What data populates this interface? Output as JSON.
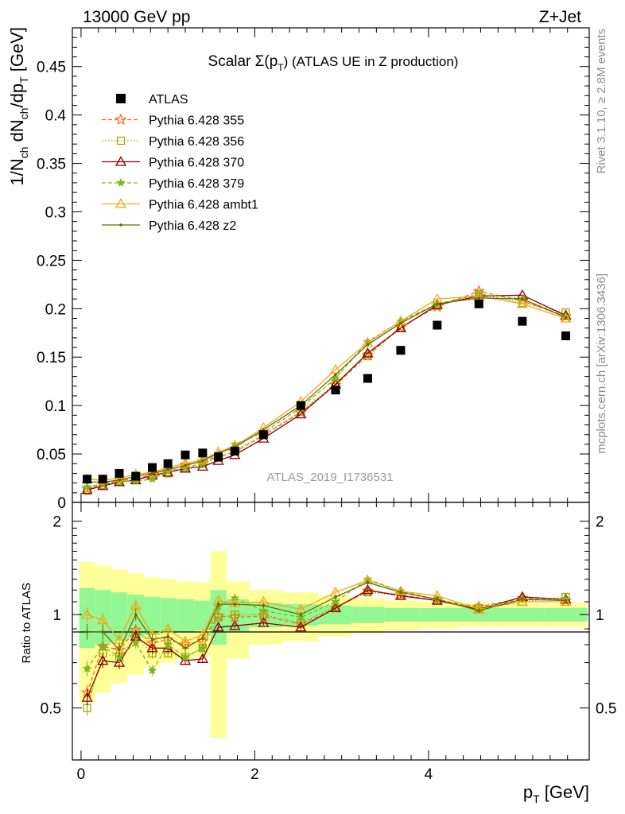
{
  "header": {
    "left": "13000 GeV pp",
    "right": "Z+Jet"
  },
  "side_text": {
    "top": "Rivet 3.1.10, ≥ 2.8M events",
    "bottom": "mcplots.cern.ch [arXiv:1306.3436]"
  },
  "watermark": "ATLAS_2019_I1736531",
  "chart_data": [
    {
      "type": "scatter",
      "title_main": "Scalar Σ(p",
      "title_sub": "T",
      "title_end": ") (ATLAS UE in Z production)",
      "ylabel": "1/N_ch dN_ch/dp_T [GeV]",
      "xlim": [
        -0.1,
        5.85
      ],
      "ylim": [
        0,
        0.49
      ],
      "y_ticks": [
        0,
        0.05,
        0.1,
        0.15,
        0.2,
        0.25,
        0.3,
        0.35,
        0.4,
        0.45
      ],
      "y_tick_labels": [
        "0",
        "0.05",
        "0.1",
        "0.15",
        "0.2",
        "0.25",
        "0.3",
        "0.35",
        "0.4",
        "0.45"
      ],
      "x": [
        0.07,
        0.25,
        0.44,
        0.63,
        0.82,
        1.0,
        1.2,
        1.4,
        1.58,
        1.77,
        2.1,
        2.53,
        2.93,
        3.3,
        3.68,
        4.1,
        4.58,
        5.08,
        5.58
      ],
      "data": {
        "name": "ATLAS",
        "values": [
          0.024,
          0.024,
          0.03,
          0.027,
          0.036,
          0.04,
          0.049,
          0.051,
          0.047,
          0.053,
          0.07,
          0.1,
          0.116,
          0.128,
          0.157,
          0.183,
          0.205,
          0.187,
          0.172
        ]
      },
      "series": [
        {
          "name": "Pythia 6.428 355",
          "color": "#ff6a1a",
          "dash": "5,3",
          "marker": "star",
          "values": [
            0.014,
            0.019,
            0.023,
            0.024,
            0.029,
            0.033,
            0.039,
            0.042,
            0.047,
            0.052,
            0.069,
            0.093,
            0.121,
            0.152,
            0.181,
            0.202,
            0.218,
            0.208,
            0.192
          ]
        },
        {
          "name": "Pythia 6.428 356",
          "color": "#9aaa00",
          "dash": "1.5,2.5",
          "marker": "square",
          "values": [
            0.012,
            0.018,
            0.022,
            0.023,
            0.027,
            0.03,
            0.036,
            0.04,
            0.046,
            0.053,
            0.07,
            0.094,
            0.123,
            0.151,
            0.18,
            0.203,
            0.215,
            0.206,
            0.196
          ]
        },
        {
          "name": "Pythia 6.428 370",
          "color": "#8b0000",
          "dash": "",
          "marker": "triangle",
          "values": [
            0.013,
            0.017,
            0.021,
            0.023,
            0.028,
            0.031,
            0.035,
            0.037,
            0.043,
            0.049,
            0.066,
            0.091,
            0.122,
            0.154,
            0.18,
            0.204,
            0.213,
            0.214,
            0.193
          ]
        },
        {
          "name": "Pythia 6.428 379",
          "color": "#7ab81e",
          "dash": "5,3",
          "marker": "smallstar",
          "values": [
            0.016,
            0.019,
            0.022,
            0.022,
            0.024,
            0.032,
            0.036,
            0.04,
            0.05,
            0.06,
            0.072,
            0.098,
            0.128,
            0.166,
            0.187,
            0.205,
            0.215,
            0.21,
            0.192
          ]
        },
        {
          "name": "Pythia 6.428 ambt1",
          "color": "#f0a818",
          "dash": "",
          "marker": "triangle",
          "values": [
            0.024,
            0.023,
            0.025,
            0.029,
            0.031,
            0.036,
            0.04,
            0.044,
            0.052,
            0.058,
            0.077,
            0.104,
            0.137,
            0.165,
            0.187,
            0.21,
            0.213,
            0.205,
            0.19
          ]
        },
        {
          "name": "Pythia 6.428 z2",
          "color": "#6b6b00",
          "dash": "",
          "marker": "dot",
          "values": [
            0.021,
            0.021,
            0.023,
            0.027,
            0.03,
            0.034,
            0.038,
            0.043,
            0.051,
            0.057,
            0.075,
            0.1,
            0.132,
            0.163,
            0.185,
            0.205,
            0.211,
            0.21,
            0.191
          ]
        }
      ]
    },
    {
      "type": "line",
      "ylabel": "Ratio to ATLAS",
      "xlabel_main": "p",
      "xlabel_sub": "T",
      "xlabel_end": " [GeV]",
      "xlim": [
        -0.1,
        5.85
      ],
      "ylim": [
        0.34,
        2.3
      ],
      "x_ticks": [
        0,
        2,
        4
      ],
      "x_tick_labels": [
        "0",
        "2",
        "4"
      ],
      "y_ticks": [
        0.5,
        1,
        2
      ],
      "y_tick_labels": [
        "0.5",
        "1",
        "2"
      ],
      "x": [
        0.07,
        0.25,
        0.44,
        0.63,
        0.82,
        1.0,
        1.2,
        1.4,
        1.58,
        1.77,
        2.1,
        2.53,
        2.93,
        3.3,
        3.68,
        4.1,
        4.58,
        5.08,
        5.58
      ],
      "band_stat": [
        0.22,
        0.2,
        0.18,
        0.16,
        0.14,
        0.13,
        0.12,
        0.11,
        0.2,
        0.12,
        0.09,
        0.08,
        0.07,
        0.06,
        0.05,
        0.05,
        0.05,
        0.05,
        0.05
      ],
      "band_total": [
        0.48,
        0.44,
        0.4,
        0.36,
        0.32,
        0.3,
        0.28,
        0.27,
        0.6,
        0.28,
        0.2,
        0.18,
        0.15,
        0.13,
        0.11,
        0.1,
        0.09,
        0.09,
        0.09
      ],
      "band_colors": {
        "stat": "#93f893",
        "total": "#ffff99"
      },
      "series": [
        {
          "name": "Pythia 6.428 355",
          "values": [
            0.56,
            0.79,
            0.77,
            0.89,
            0.81,
            0.83,
            0.8,
            0.82,
            0.99,
            0.98,
            0.99,
            0.93,
            1.05,
            1.19,
            1.16,
            1.11,
            1.06,
            1.13,
            1.11
          ]
        },
        {
          "name": "Pythia 6.428 356",
          "values": [
            0.5,
            0.75,
            0.73,
            0.85,
            0.75,
            0.75,
            0.73,
            0.78,
            0.98,
            1.0,
            1.0,
            0.94,
            1.06,
            1.18,
            1.15,
            1.11,
            1.05,
            1.1,
            1.14
          ]
        },
        {
          "name": "Pythia 6.428 370",
          "values": [
            0.54,
            0.71,
            0.7,
            0.85,
            0.78,
            0.78,
            0.71,
            0.72,
            0.91,
            0.92,
            0.94,
            0.91,
            1.05,
            1.2,
            1.15,
            1.11,
            1.04,
            1.14,
            1.12
          ]
        },
        {
          "name": "Pythia 6.428 379",
          "values": [
            0.67,
            0.79,
            0.73,
            0.81,
            0.66,
            0.8,
            0.73,
            0.78,
            1.06,
            1.13,
            1.03,
            0.98,
            1.1,
            1.3,
            1.19,
            1.12,
            1.05,
            1.12,
            1.12
          ]
        },
        {
          "name": "Pythia 6.428 ambt1",
          "values": [
            1.0,
            0.96,
            0.83,
            1.07,
            0.86,
            0.9,
            0.82,
            0.86,
            1.11,
            1.09,
            1.1,
            1.04,
            1.18,
            1.29,
            1.19,
            1.15,
            1.04,
            1.1,
            1.1
          ]
        },
        {
          "name": "Pythia 6.428 z2",
          "values": [
            0.88,
            0.88,
            0.77,
            1.0,
            0.83,
            0.85,
            0.78,
            0.84,
            1.08,
            1.08,
            1.07,
            1.0,
            1.14,
            1.27,
            1.18,
            1.12,
            1.03,
            1.12,
            1.11
          ]
        }
      ]
    }
  ]
}
